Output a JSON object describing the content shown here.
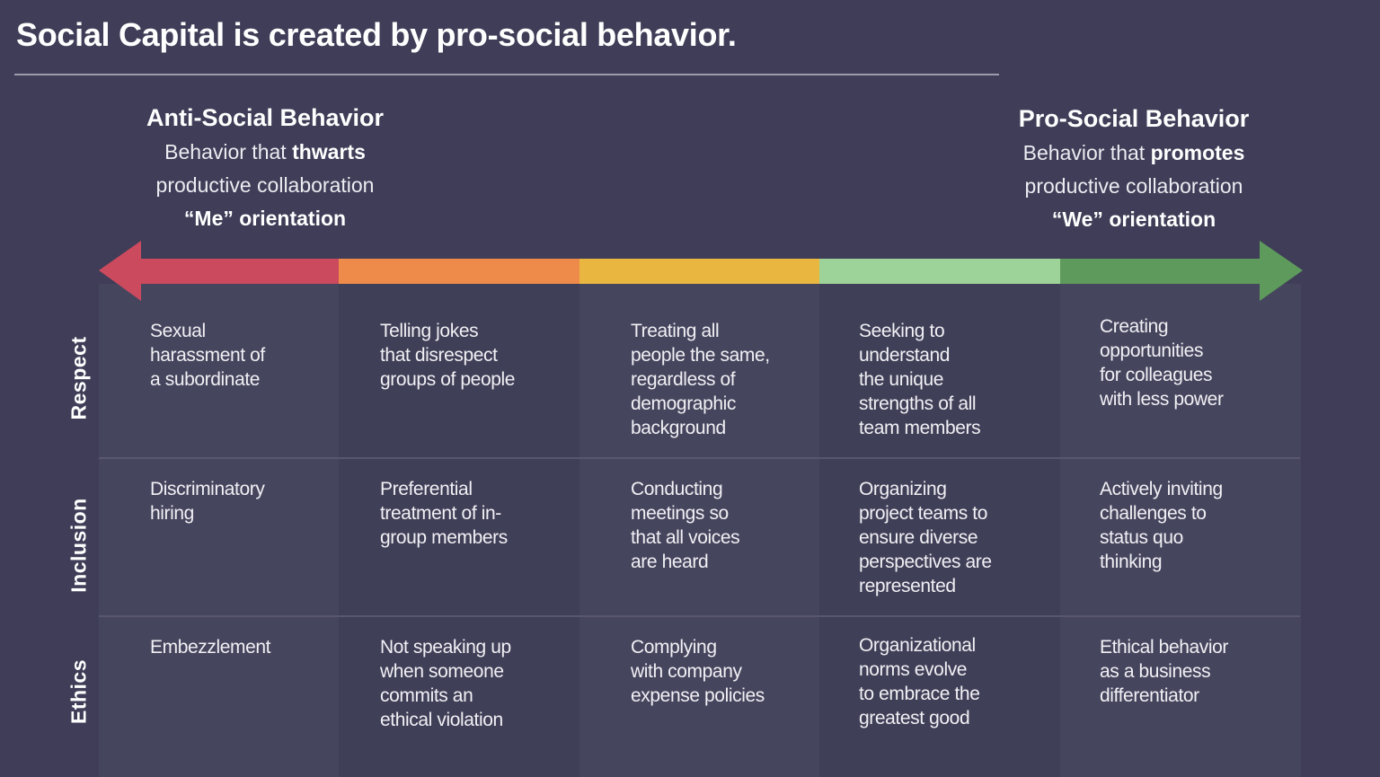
{
  "title": "Social Capital is created by pro-social behavior.",
  "left_header": {
    "heading": "Anti-Social Behavior",
    "line1_prefix": "Behavior that ",
    "line1_bold": "thwarts",
    "line2": "productive collaboration",
    "line3": "“Me” orientation"
  },
  "right_header": {
    "heading": "Pro-Social Behavior",
    "line1_prefix": "Behavior that ",
    "line1_bold": "promotes",
    "line2": "productive collaboration",
    "line3": "“We” orientation"
  },
  "arrow_colors": [
    "#cc4a5e",
    "#ee8a4a",
    "#e9b740",
    "#9dd398",
    "#5e9a5c"
  ],
  "rows": [
    {
      "label": "Respect",
      "cells": [
        "Sexual\nharassment of\na subordinate",
        "Telling jokes\nthat disrespect\ngroups of people",
        "Treating all\npeople the same,\nregardless of\ndemographic\nbackground",
        "Seeking to\nunderstand\nthe unique\nstrengths of all\nteam members",
        "Creating\nopportunities\nfor colleagues\nwith less power"
      ]
    },
    {
      "label": "Inclusion",
      "cells": [
        "Discriminatory\nhiring",
        "Preferential\ntreatment of in-\ngroup members",
        "Conducting\nmeetings so\nthat all voices\nare heard",
        "Organizing\nproject teams to\nensure diverse\nperspectives are\nrepresented",
        "Actively inviting\nchallenges to\nstatus quo\nthinking"
      ]
    },
    {
      "label": "Ethics",
      "cells": [
        "Embezzlement",
        "Not speaking up\nwhen someone\ncommits an\nethical violation",
        "Complying\nwith company\nexpense policies",
        "Organizational\nnorms evolve\nto embrace the\ngreatest good",
        "Ethical behavior\nas a business\ndifferentiator"
      ]
    }
  ]
}
